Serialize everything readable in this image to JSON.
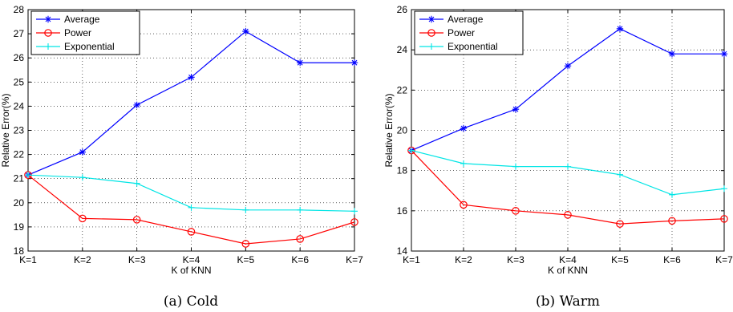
{
  "chart_data": [
    {
      "type": "line",
      "caption": "(a)  Cold",
      "xlabel": "K of KNN",
      "ylabel": "Relative Error(%)",
      "categories": [
        "K=1",
        "K=2",
        "K=3",
        "K=4",
        "K=5",
        "K=6",
        "K=7"
      ],
      "ylim": [
        18,
        28
      ],
      "yticks": [
        18,
        19,
        20,
        21,
        22,
        23,
        24,
        25,
        26,
        27,
        28
      ],
      "grid": true,
      "legend_position": "top-left",
      "series": [
        {
          "name": "Average",
          "color": "#0000ff",
          "marker": "star",
          "values": [
            21.15,
            22.1,
            24.05,
            25.2,
            27.1,
            25.8,
            25.8
          ]
        },
        {
          "name": "Power",
          "color": "#ff0000",
          "marker": "circle",
          "values": [
            21.15,
            19.35,
            19.3,
            18.8,
            18.3,
            18.5,
            19.2
          ]
        },
        {
          "name": "Exponential",
          "color": "#00e5e5",
          "marker": "plus",
          "values": [
            21.15,
            21.05,
            20.8,
            19.8,
            19.7,
            19.7,
            19.65
          ]
        }
      ]
    },
    {
      "type": "line",
      "caption": "(b)  Warm",
      "xlabel": "K of KNN",
      "ylabel": "Relative Error(%)",
      "categories": [
        "K=1",
        "K=2",
        "K=3",
        "K=4",
        "K=5",
        "K=6",
        "K=7"
      ],
      "ylim": [
        14,
        26
      ],
      "yticks": [
        14,
        16,
        18,
        20,
        22,
        24,
        26
      ],
      "grid": true,
      "legend_position": "top-left",
      "series": [
        {
          "name": "Average",
          "color": "#0000ff",
          "marker": "star",
          "values": [
            19.0,
            20.1,
            21.05,
            23.2,
            25.05,
            23.8,
            23.8
          ]
        },
        {
          "name": "Power",
          "color": "#ff0000",
          "marker": "circle",
          "values": [
            19.0,
            16.3,
            16.0,
            15.8,
            15.35,
            15.5,
            15.6
          ]
        },
        {
          "name": "Exponential",
          "color": "#00e5e5",
          "marker": "plus",
          "values": [
            19.0,
            18.35,
            18.2,
            18.2,
            17.8,
            16.8,
            17.1
          ]
        }
      ]
    }
  ]
}
